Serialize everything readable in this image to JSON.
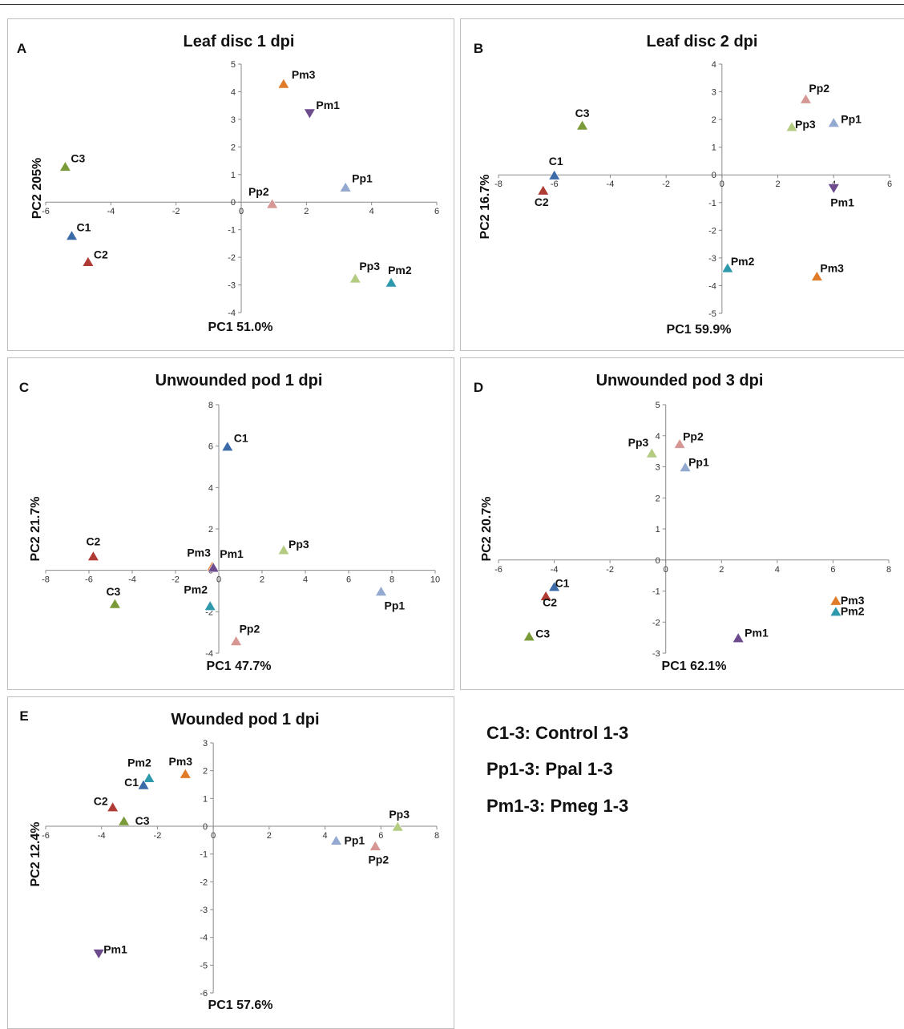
{
  "legend_notes": [
    "C1-3: Control 1-3",
    "Pp1-3: Ppal 1-3",
    "Pm1-3: Pmeg 1-3"
  ],
  "colors": {
    "C1": "#3a6aa8",
    "C2": "#b03a34",
    "C3": "#7a9a3a",
    "Pp1": "#93a9cf",
    "Pp2": "#d69694",
    "Pp3": "#b3cc82",
    "Pm1": "#6d4c8e",
    "Pm2": "#2e98ad",
    "Pm3": "#e07b2a"
  },
  "chart_data": [
    {
      "panel": "A",
      "type": "scatter",
      "title": "Leaf disc 1 dpi",
      "xlabel": "PC1 51.0%",
      "ylabel": "PC2 205%",
      "xlim": [
        -6,
        6
      ],
      "ylim": [
        -4,
        5
      ],
      "xticks": [
        -6,
        -4,
        -2,
        0,
        2,
        4,
        6
      ],
      "yticks": [
        -4,
        -3,
        -2,
        -1,
        0,
        1,
        2,
        3,
        4,
        5
      ],
      "points": [
        {
          "label": "Pm3",
          "x": 1.3,
          "y": 4.3
        },
        {
          "label": "Pm1",
          "x": 2.1,
          "y": 3.2
        },
        {
          "label": "C3",
          "x": -5.4,
          "y": 1.3
        },
        {
          "label": "Pp1",
          "x": 3.2,
          "y": 0.55
        },
        {
          "label": "Pp2",
          "x": 0.95,
          "y": -0.05
        },
        {
          "label": "C1",
          "x": -5.2,
          "y": -1.2
        },
        {
          "label": "C2",
          "x": -4.7,
          "y": -2.15
        },
        {
          "label": "Pp3",
          "x": 3.5,
          "y": -2.75
        },
        {
          "label": "Pm2",
          "x": 4.6,
          "y": -2.9
        }
      ]
    },
    {
      "panel": "B",
      "type": "scatter",
      "title": "Leaf disc 2 dpi",
      "xlabel": "PC1 59.9%",
      "ylabel": "PC2 16.7%",
      "xlim": [
        -8,
        6
      ],
      "ylim": [
        -5,
        4
      ],
      "xticks": [
        -8,
        -6,
        -4,
        -2,
        0,
        2,
        4,
        6
      ],
      "yticks": [
        -5,
        -4,
        -3,
        -2,
        -1,
        0,
        1,
        2,
        3,
        4
      ],
      "points": [
        {
          "label": "Pp2",
          "x": 3.0,
          "y": 2.75
        },
        {
          "label": "C3",
          "x": -5.0,
          "y": 1.8
        },
        {
          "label": "Pp3",
          "x": 2.5,
          "y": 1.75
        },
        {
          "label": "Pp1",
          "x": 4.0,
          "y": 1.9
        },
        {
          "label": "C1",
          "x": -6.0,
          "y": 0.0
        },
        {
          "label": "C2",
          "x": -6.4,
          "y": -0.55
        },
        {
          "label": "Pm1",
          "x": 4.0,
          "y": -0.5
        },
        {
          "label": "Pm2",
          "x": 0.2,
          "y": -3.35
        },
        {
          "label": "Pm3",
          "x": 3.4,
          "y": -3.65
        }
      ]
    },
    {
      "panel": "C",
      "type": "scatter",
      "title": "Unwounded pod 1 dpi",
      "xlabel": "PC1 47.7%",
      "ylabel": "PC2 21.7%",
      "xlim": [
        -8,
        10
      ],
      "ylim": [
        -4,
        8
      ],
      "xticks": [
        -8,
        -6,
        -4,
        -2,
        0,
        2,
        4,
        6,
        8,
        10
      ],
      "yticks": [
        -4,
        -2,
        0,
        2,
        4,
        6,
        8
      ],
      "points": [
        {
          "label": "C1",
          "x": 0.4,
          "y": 6.0
        },
        {
          "label": "C2",
          "x": -5.8,
          "y": 0.7
        },
        {
          "label": "Pp3",
          "x": 3.0,
          "y": 1.0
        },
        {
          "label": "Pm3",
          "x": -0.3,
          "y": 0.2
        },
        {
          "label": "Pm1",
          "x": -0.25,
          "y": 0.15
        },
        {
          "label": "C3",
          "x": -4.8,
          "y": -1.6
        },
        {
          "label": "Pm2",
          "x": -0.4,
          "y": -1.7
        },
        {
          "label": "Pp1",
          "x": 7.5,
          "y": -1.0
        },
        {
          "label": "Pp2",
          "x": 0.8,
          "y": -3.4
        }
      ]
    },
    {
      "panel": "D",
      "type": "scatter",
      "title": "Unwounded pod 3 dpi",
      "xlabel": "PC1 62.1%",
      "ylabel": "PC2 20.7%",
      "xlim": [
        -6,
        8
      ],
      "ylim": [
        -3,
        5
      ],
      "xticks": [
        -6,
        -4,
        -2,
        0,
        2,
        4,
        6,
        8
      ],
      "yticks": [
        -3,
        -2,
        -1,
        0,
        1,
        2,
        3,
        4,
        5
      ],
      "points": [
        {
          "label": "Pp2",
          "x": 0.5,
          "y": 3.75
        },
        {
          "label": "Pp3",
          "x": -0.5,
          "y": 3.45
        },
        {
          "label": "Pp1",
          "x": 0.7,
          "y": 3.0
        },
        {
          "label": "C1",
          "x": -4.0,
          "y": -0.85
        },
        {
          "label": "C2",
          "x": -4.3,
          "y": -1.15
        },
        {
          "label": "Pm3",
          "x": 6.1,
          "y": -1.3
        },
        {
          "label": "Pm2",
          "x": 6.1,
          "y": -1.65
        },
        {
          "label": "Pm1",
          "x": 2.6,
          "y": -2.5
        },
        {
          "label": "C3",
          "x": -4.9,
          "y": -2.45
        }
      ]
    },
    {
      "panel": "E",
      "type": "scatter",
      "title": "Wounded pod 1 dpi",
      "xlabel": "PC1 57.6%",
      "ylabel": "PC2 12.4%",
      "xlim": [
        -6,
        8
      ],
      "ylim": [
        -6,
        3
      ],
      "xticks": [
        -6,
        -4,
        -2,
        0,
        2,
        4,
        6,
        8
      ],
      "yticks": [
        -6,
        -5,
        -4,
        -3,
        -2,
        -1,
        0,
        1,
        2,
        3
      ],
      "points": [
        {
          "label": "Pm2",
          "x": -2.3,
          "y": 1.75
        },
        {
          "label": "Pm3",
          "x": -1.0,
          "y": 1.9
        },
        {
          "label": "C1",
          "x": -2.5,
          "y": 1.5
        },
        {
          "label": "C2",
          "x": -3.6,
          "y": 0.7
        },
        {
          "label": "C3",
          "x": -3.2,
          "y": 0.2
        },
        {
          "label": "Pp3",
          "x": 6.6,
          "y": 0.0
        },
        {
          "label": "Pp1",
          "x": 4.4,
          "y": -0.5
        },
        {
          "label": "Pp2",
          "x": 5.8,
          "y": -0.7
        },
        {
          "label": "Pm1",
          "x": -4.1,
          "y": -4.6
        }
      ]
    }
  ]
}
